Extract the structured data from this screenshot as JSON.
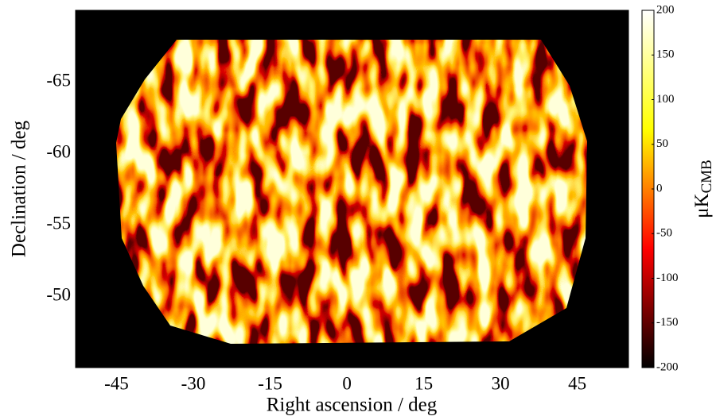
{
  "chart_data": {
    "type": "heatmap",
    "x_label": "Right ascension / deg",
    "y_label": "Declination / deg",
    "xlim": [
      -53,
      55
    ],
    "xticks": [
      -45,
      -30,
      -15,
      0,
      15,
      30,
      45
    ],
    "ylim": [
      -45,
      -70
    ],
    "yticks": [
      -65,
      -60,
      -55,
      -50
    ],
    "colorbar": {
      "label": "μK",
      "label_sub": "CMB",
      "lim": [
        -200,
        200
      ],
      "ticks": [
        -200,
        -150,
        -100,
        -50,
        0,
        50,
        100,
        150,
        200
      ],
      "colormap": [
        "#000000",
        "#ff0000",
        "#ffff00",
        "#ffffff"
      ]
    }
  }
}
